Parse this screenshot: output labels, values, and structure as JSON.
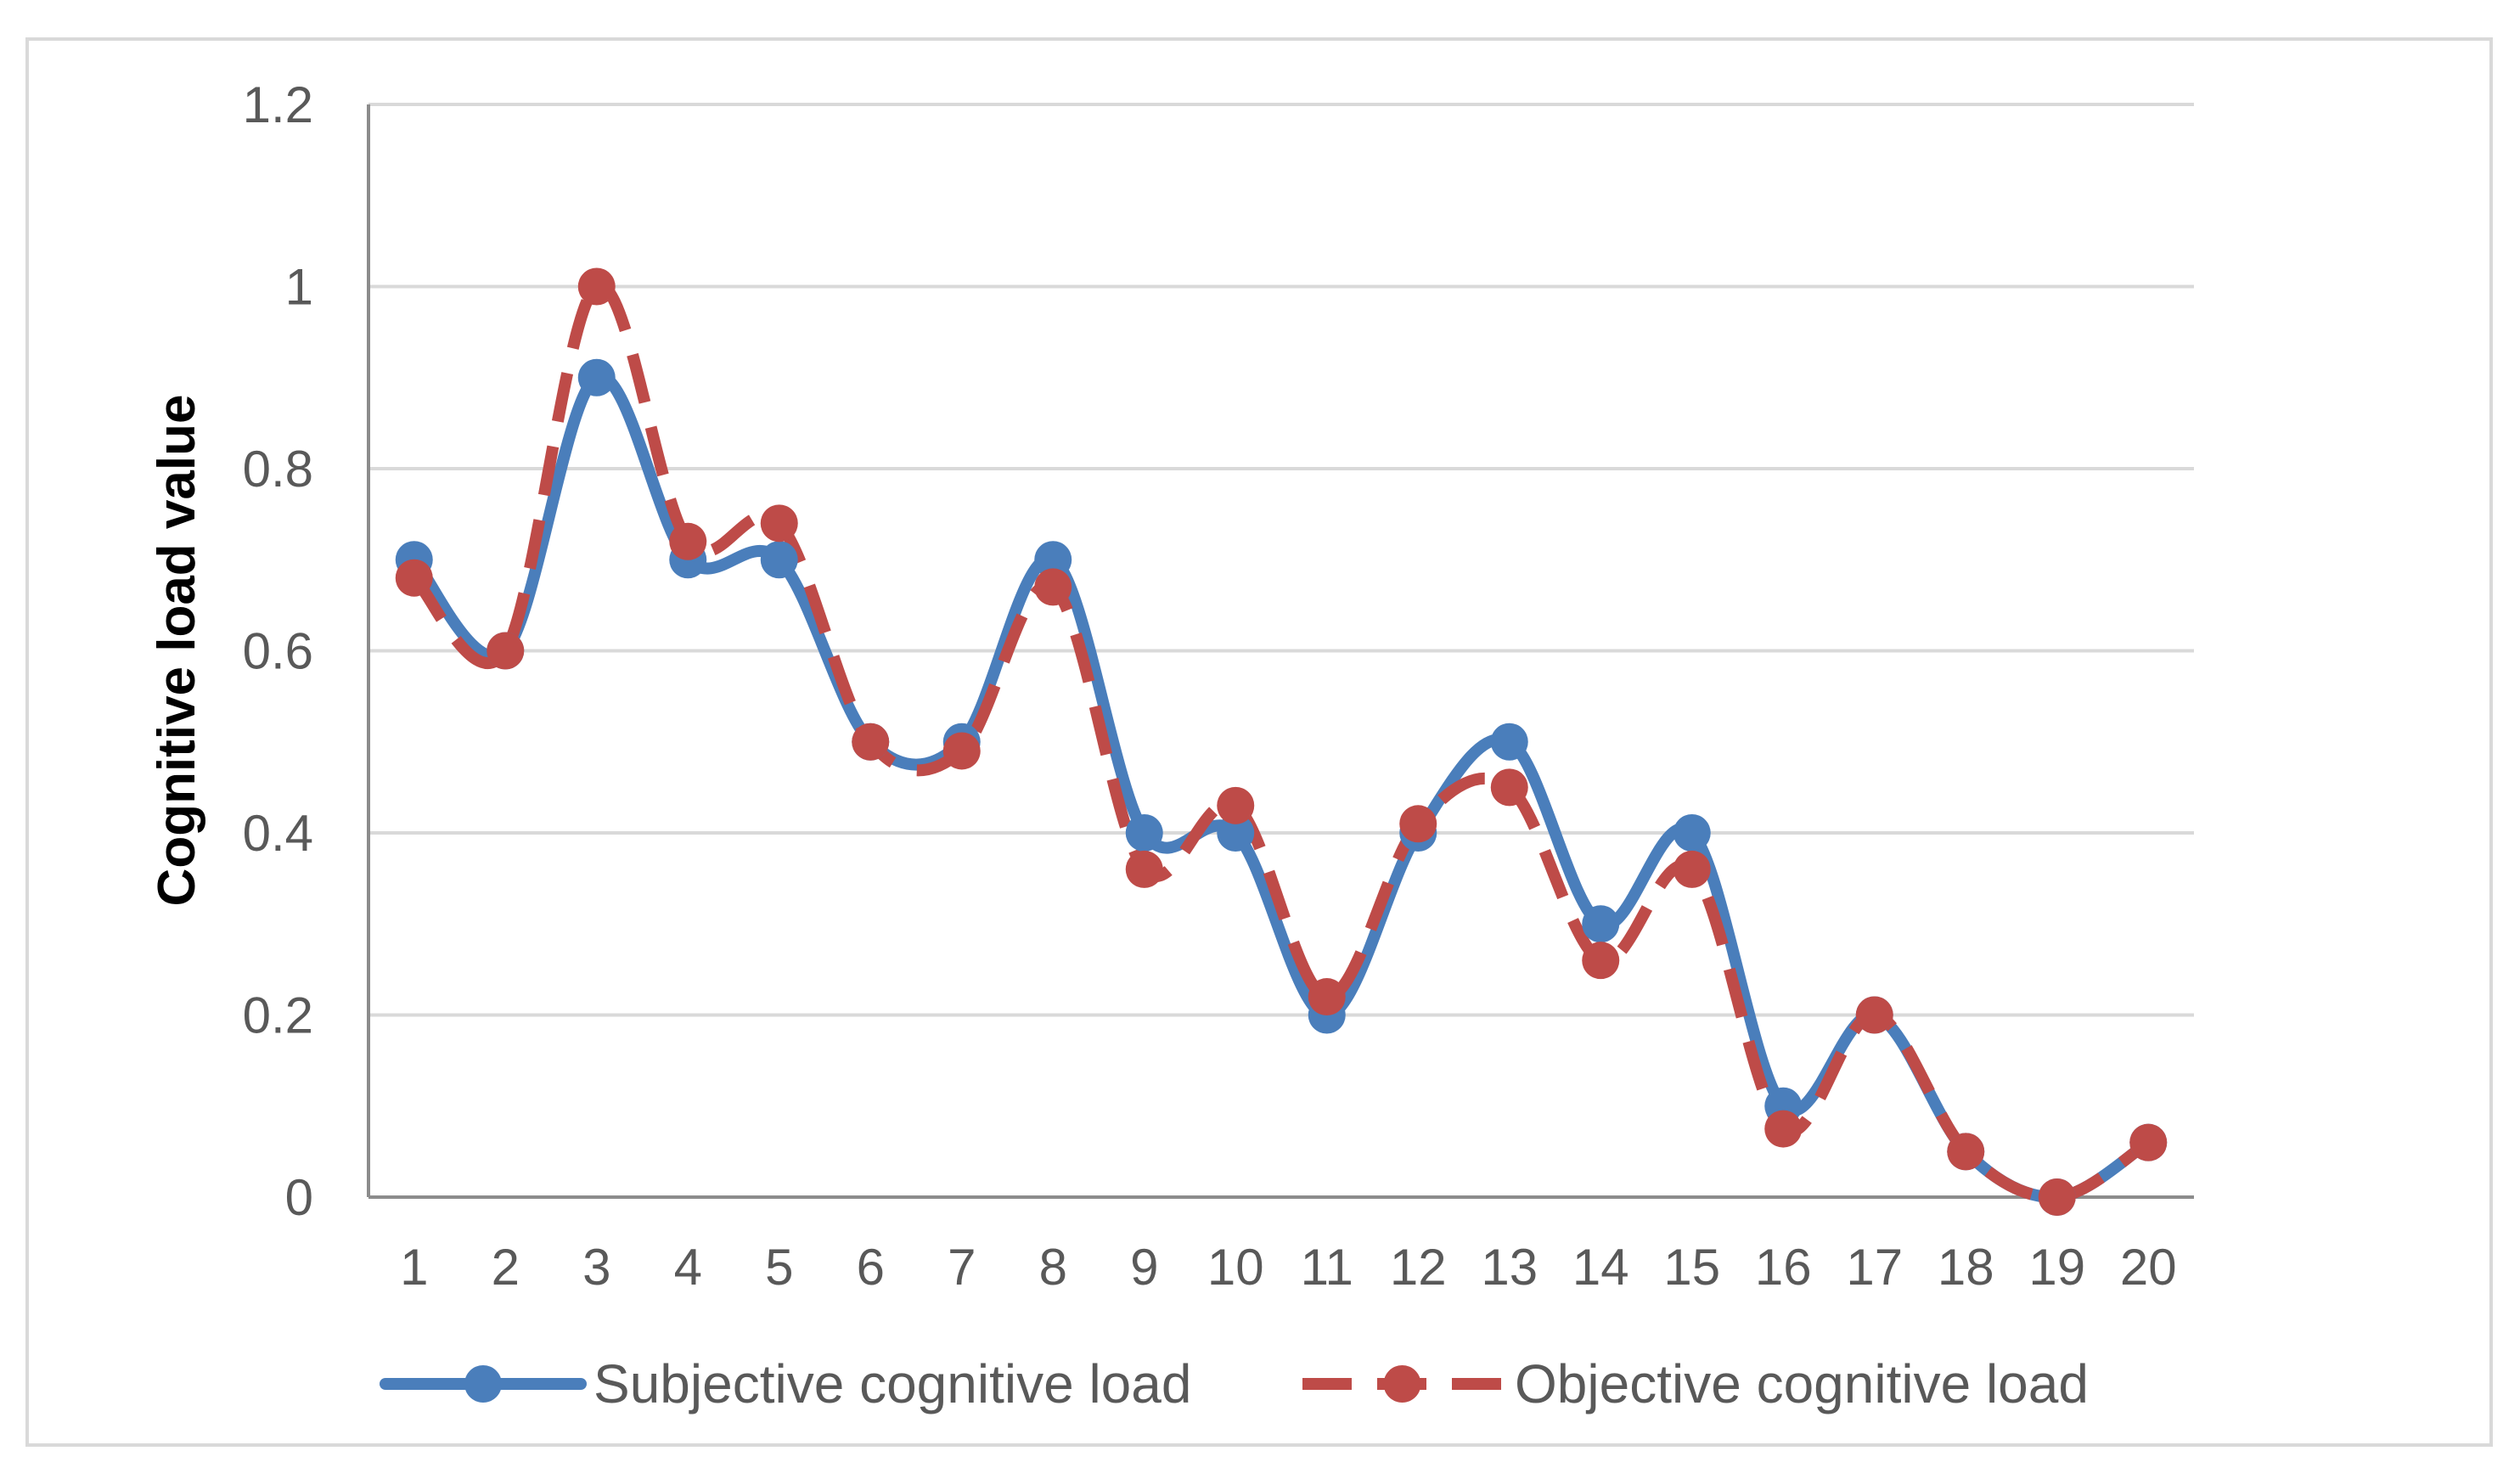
{
  "chart_data": {
    "type": "line",
    "title": "",
    "xlabel": "",
    "ylabel": "Cognitive load value",
    "ylim": [
      0,
      1.2
    ],
    "yticks": [
      "0",
      "0.2",
      "0.4",
      "0.6",
      "0.8",
      "1",
      "1.2"
    ],
    "categories": [
      "1",
      "2",
      "3",
      "4",
      "5",
      "6",
      "7",
      "8",
      "9",
      "10",
      "11",
      "12",
      "13",
      "14",
      "15",
      "16",
      "17",
      "18",
      "19",
      "20"
    ],
    "grid": true,
    "legend_position": "bottom",
    "series": [
      {
        "name": "Subjective cognitive load",
        "color": "#4a7ebb",
        "dash": "solid",
        "values": [
          0.7,
          0.6,
          0.9,
          0.7,
          0.7,
          0.5,
          0.5,
          0.7,
          0.4,
          0.4,
          0.2,
          0.4,
          0.5,
          0.3,
          0.4,
          0.1,
          0.2,
          0.05,
          0.0,
          0.06
        ]
      },
      {
        "name": "Objective cognitive load",
        "color": "#be4b48",
        "dash": "dashed",
        "values": [
          0.68,
          0.6,
          1.0,
          0.72,
          0.74,
          0.5,
          0.49,
          0.67,
          0.36,
          0.43,
          0.22,
          0.41,
          0.45,
          0.26,
          0.36,
          0.075,
          0.2,
          0.05,
          0.0,
          0.06
        ]
      }
    ]
  }
}
